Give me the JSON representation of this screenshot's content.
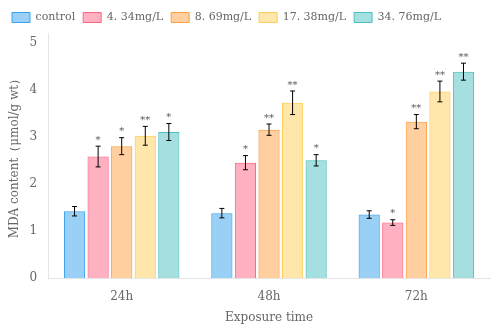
{
  "chart_data": {
    "type": "bar",
    "xlabel": "Exposure time",
    "ylabel": "MDA content（μmol/g wt）",
    "categories": [
      "24h",
      "48h",
      "72h"
    ],
    "series": [
      {
        "name": "control",
        "values": [
          1.42,
          1.38,
          1.35
        ],
        "errors": [
          0.1,
          0.1,
          0.08
        ]
      },
      {
        "name": "4. 34mg/L",
        "values": [
          2.58,
          2.45,
          1.18
        ],
        "errors": [
          0.22,
          0.15,
          0.06
        ],
        "significance": [
          "*",
          "*",
          "*"
        ]
      },
      {
        "name": "8. 69mg/L",
        "values": [
          2.8,
          3.15,
          3.32
        ],
        "errors": [
          0.18,
          0.12,
          0.15
        ],
        "significance": [
          "*",
          "**",
          "**"
        ]
      },
      {
        "name": "17. 38mg/L",
        "values": [
          3.02,
          3.72,
          3.96
        ],
        "errors": [
          0.2,
          0.25,
          0.22
        ],
        "significance": [
          "**",
          "**",
          "**"
        ]
      },
      {
        "name": "34. 76mg/L",
        "values": [
          3.1,
          2.5,
          4.38
        ],
        "errors": [
          0.18,
          0.12,
          0.18
        ],
        "significance": [
          "*",
          "*",
          "**"
        ]
      }
    ],
    "ylim": [
      0,
      5.2
    ],
    "yticks": [
      0,
      1,
      2,
      3,
      4,
      5
    ],
    "grid": false,
    "legend": "upper left"
  }
}
